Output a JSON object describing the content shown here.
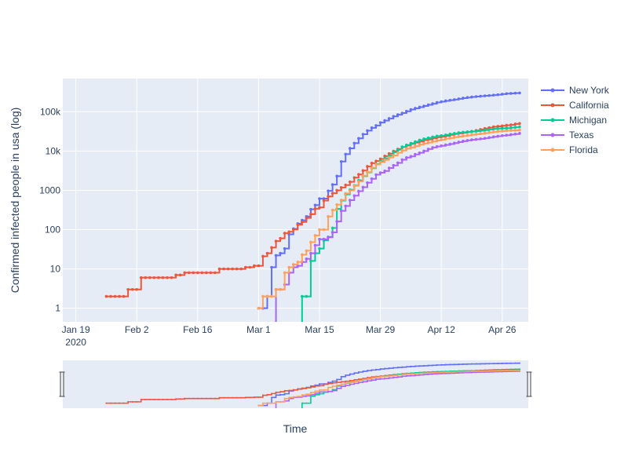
{
  "chart_data": {
    "type": "line",
    "ylabel": "Confirmed infected people in usa (log)",
    "xlabel": "Time",
    "y_scale": "log",
    "ylim": [
      0.45,
      700000
    ],
    "xlim": [
      "2020-01-16",
      "2020-05-02"
    ],
    "grid": true,
    "legend_position": "top-right",
    "range_slider": true,
    "x_tick_labels": [
      {
        "date": "2020-01-19",
        "line1": "Jan 19",
        "line2": "2020"
      },
      {
        "date": "2020-02-02",
        "line1": "Feb 2"
      },
      {
        "date": "2020-02-16",
        "line1": "Feb 16"
      },
      {
        "date": "2020-03-01",
        "line1": "Mar 1"
      },
      {
        "date": "2020-03-15",
        "line1": "Mar 15"
      },
      {
        "date": "2020-03-29",
        "line1": "Mar 29"
      },
      {
        "date": "2020-04-12",
        "line1": "Apr 12"
      },
      {
        "date": "2020-04-26",
        "line1": "Apr 26"
      }
    ],
    "y_tick_labels": [
      {
        "value": 1,
        "label": "1"
      },
      {
        "value": 10,
        "label": "10"
      },
      {
        "value": 100,
        "label": "100"
      },
      {
        "value": 1000,
        "label": "1000"
      },
      {
        "value": 10000,
        "label": "10k"
      },
      {
        "value": 100000,
        "label": "100k"
      }
    ],
    "series": [
      {
        "name": "New York",
        "color": "#636efa",
        "x": [
          "2020-03-01",
          "2020-03-02",
          "2020-03-03",
          "2020-03-04",
          "2020-03-05",
          "2020-03-06",
          "2020-03-07",
          "2020-03-08",
          "2020-03-09",
          "2020-03-10",
          "2020-03-11",
          "2020-03-12",
          "2020-03-13",
          "2020-03-14",
          "2020-03-15",
          "2020-03-16",
          "2020-03-17",
          "2020-03-18",
          "2020-03-19",
          "2020-03-20",
          "2020-03-21",
          "2020-03-22",
          "2020-03-23",
          "2020-03-24",
          "2020-03-25",
          "2020-03-26",
          "2020-03-27",
          "2020-03-28",
          "2020-03-29",
          "2020-03-30",
          "2020-03-31",
          "2020-04-01",
          "2020-04-02",
          "2020-04-03",
          "2020-04-04",
          "2020-04-05",
          "2020-04-06",
          "2020-04-07",
          "2020-04-08",
          "2020-04-09",
          "2020-04-10",
          "2020-04-11",
          "2020-04-12",
          "2020-04-13",
          "2020-04-14",
          "2020-04-15",
          "2020-04-16",
          "2020-04-17",
          "2020-04-18",
          "2020-04-19",
          "2020-04-20",
          "2020-04-21",
          "2020-04-22",
          "2020-04-23",
          "2020-04-24",
          "2020-04-25",
          "2020-04-26",
          "2020-04-27",
          "2020-04-28",
          "2020-04-29",
          "2020-04-30"
        ],
        "y": [
          1,
          1,
          2,
          11,
          22,
          25,
          33,
          76,
          105,
          142,
          173,
          216,
          328,
          421,
          613,
          615,
          967,
          1400,
          2300,
          5400,
          8300,
          11700,
          15800,
          21000,
          26700,
          33000,
          38900,
          44600,
          53000,
          59500,
          67200,
          76000,
          84000,
          92400,
          102900,
          113700,
          122000,
          131000,
          140000,
          150000,
          160000,
          172000,
          180000,
          189000,
          196000,
          203000,
          213000,
          222000,
          230000,
          237000,
          243000,
          248000,
          254000,
          259000,
          265000,
          271000,
          280000,
          288000,
          292000,
          297000,
          300000
        ]
      },
      {
        "name": "California",
        "color": "#ef553b",
        "x": [
          "2020-01-26",
          "2020-01-27",
          "2020-01-28",
          "2020-01-29",
          "2020-01-30",
          "2020-01-31",
          "2020-02-01",
          "2020-02-02",
          "2020-02-03",
          "2020-02-04",
          "2020-02-05",
          "2020-02-06",
          "2020-02-07",
          "2020-02-08",
          "2020-02-09",
          "2020-02-10",
          "2020-02-11",
          "2020-02-12",
          "2020-02-13",
          "2020-02-14",
          "2020-02-15",
          "2020-02-16",
          "2020-02-17",
          "2020-02-18",
          "2020-02-19",
          "2020-02-20",
          "2020-02-21",
          "2020-02-22",
          "2020-02-23",
          "2020-02-24",
          "2020-02-25",
          "2020-02-26",
          "2020-02-27",
          "2020-02-28",
          "2020-02-29",
          "2020-03-01",
          "2020-03-02",
          "2020-03-03",
          "2020-03-04",
          "2020-03-05",
          "2020-03-06",
          "2020-03-07",
          "2020-03-08",
          "2020-03-09",
          "2020-03-10",
          "2020-03-11",
          "2020-03-12",
          "2020-03-13",
          "2020-03-14",
          "2020-03-15",
          "2020-03-16",
          "2020-03-17",
          "2020-03-18",
          "2020-03-19",
          "2020-03-20",
          "2020-03-21",
          "2020-03-22",
          "2020-03-23",
          "2020-03-24",
          "2020-03-25",
          "2020-03-26",
          "2020-03-27",
          "2020-03-28",
          "2020-03-29",
          "2020-03-30",
          "2020-03-31",
          "2020-04-01",
          "2020-04-02",
          "2020-04-03",
          "2020-04-04",
          "2020-04-05",
          "2020-04-06",
          "2020-04-07",
          "2020-04-08",
          "2020-04-09",
          "2020-04-10",
          "2020-04-11",
          "2020-04-12",
          "2020-04-13",
          "2020-04-14",
          "2020-04-15",
          "2020-04-16",
          "2020-04-17",
          "2020-04-18",
          "2020-04-19",
          "2020-04-20",
          "2020-04-21",
          "2020-04-22",
          "2020-04-23",
          "2020-04-24",
          "2020-04-25",
          "2020-04-26",
          "2020-04-27",
          "2020-04-28",
          "2020-04-29",
          "2020-04-30"
        ],
        "y": [
          2,
          2,
          2,
          2,
          2,
          3,
          3,
          3,
          6,
          6,
          6,
          6,
          6,
          6,
          6,
          6,
          7,
          7,
          8,
          8,
          8,
          8,
          8,
          8,
          8,
          8,
          10,
          10,
          10,
          10,
          10,
          10,
          11,
          11,
          12,
          12,
          21,
          25,
          35,
          51,
          60,
          81,
          88,
          101,
          133,
          157,
          198,
          247,
          340,
          366,
          550,
          698,
          843,
          1000,
          1177,
          1364,
          1642,
          2100,
          2535,
          3183,
          4060,
          4914,
          5565,
          6284,
          7421,
          8582,
          9907,
          11190,
          12569,
          13796,
          15203,
          16361,
          17351,
          18897,
          19732,
          21081,
          22348,
          23250,
          24424,
          25758,
          27134,
          28141,
          29183,
          30356,
          31595,
          33286,
          35396,
          37360,
          39254,
          41355,
          42368,
          43725,
          45215,
          46436,
          48744,
          50130
        ]
      },
      {
        "name": "Michigan",
        "color": "#00cc96",
        "x": [
          "2020-03-10",
          "2020-03-11",
          "2020-03-12",
          "2020-03-13",
          "2020-03-14",
          "2020-03-15",
          "2020-03-16",
          "2020-03-17",
          "2020-03-18",
          "2020-03-19",
          "2020-03-20",
          "2020-03-21",
          "2020-03-22",
          "2020-03-23",
          "2020-03-24",
          "2020-03-25",
          "2020-03-26",
          "2020-03-27",
          "2020-03-28",
          "2020-03-29",
          "2020-03-30",
          "2020-03-31",
          "2020-04-01",
          "2020-04-02",
          "2020-04-03",
          "2020-04-04",
          "2020-04-05",
          "2020-04-06",
          "2020-04-07",
          "2020-04-08",
          "2020-04-09",
          "2020-04-10",
          "2020-04-11",
          "2020-04-12",
          "2020-04-13",
          "2020-04-14",
          "2020-04-15",
          "2020-04-16",
          "2020-04-17",
          "2020-04-18",
          "2020-04-19",
          "2020-04-20",
          "2020-04-21",
          "2020-04-22",
          "2020-04-23",
          "2020-04-24",
          "2020-04-25",
          "2020-04-26",
          "2020-04-27",
          "2020-04-28",
          "2020-04-29",
          "2020-04-30"
        ],
        "y": [
          0.3,
          2,
          2,
          16,
          25,
          33,
          53,
          65,
          110,
          336,
          549,
          787,
          1035,
          1328,
          1791,
          2294,
          2856,
          3657,
          4650,
          5486,
          6498,
          7615,
          9334,
          10791,
          12744,
          14225,
          15718,
          17221,
          18970,
          20346,
          21504,
          22783,
          23993,
          24638,
          25635,
          27001,
          28059,
          29263,
          30023,
          30791,
          31424,
          32000,
          32967,
          33966,
          35291,
          36641,
          37203,
          37778,
          38210,
          39262,
          40399,
          41379
        ]
      },
      {
        "name": "Texas",
        "color": "#ab63fa",
        "x": [
          "2020-03-04",
          "2020-03-05",
          "2020-03-06",
          "2020-03-07",
          "2020-03-08",
          "2020-03-09",
          "2020-03-10",
          "2020-03-11",
          "2020-03-12",
          "2020-03-13",
          "2020-03-14",
          "2020-03-15",
          "2020-03-16",
          "2020-03-17",
          "2020-03-18",
          "2020-03-19",
          "2020-03-20",
          "2020-03-21",
          "2020-03-22",
          "2020-03-23",
          "2020-03-24",
          "2020-03-25",
          "2020-03-26",
          "2020-03-27",
          "2020-03-28",
          "2020-03-29",
          "2020-03-30",
          "2020-03-31",
          "2020-04-01",
          "2020-04-02",
          "2020-04-03",
          "2020-04-04",
          "2020-04-05",
          "2020-04-06",
          "2020-04-07",
          "2020-04-08",
          "2020-04-09",
          "2020-04-10",
          "2020-04-11",
          "2020-04-12",
          "2020-04-13",
          "2020-04-14",
          "2020-04-15",
          "2020-04-16",
          "2020-04-17",
          "2020-04-18",
          "2020-04-19",
          "2020-04-20",
          "2020-04-21",
          "2020-04-22",
          "2020-04-23",
          "2020-04-24",
          "2020-04-25",
          "2020-04-26",
          "2020-04-27",
          "2020-04-28",
          "2020-04-29",
          "2020-04-30"
        ],
        "y": [
          0.3,
          3,
          3,
          4,
          8,
          11,
          12,
          15,
          18,
          25,
          40,
          57,
          57,
          64,
          85,
          161,
          300,
          400,
          560,
          730,
          950,
          1200,
          1560,
          1960,
          2500,
          2800,
          3100,
          3700,
          4300,
          5000,
          6000,
          6800,
          7300,
          8200,
          9000,
          10000,
          11200,
          12300,
          13000,
          13600,
          14300,
          15000,
          15900,
          16900,
          17800,
          18600,
          19300,
          19800,
          20400,
          21100,
          22000,
          23000,
          23800,
          24600,
          25300,
          26200,
          27000,
          28200
        ]
      },
      {
        "name": "Florida",
        "color": "#ffa15a",
        "x": [
          "2020-03-01",
          "2020-03-02",
          "2020-03-03",
          "2020-03-04",
          "2020-03-05",
          "2020-03-06",
          "2020-03-07",
          "2020-03-08",
          "2020-03-09",
          "2020-03-10",
          "2020-03-11",
          "2020-03-12",
          "2020-03-13",
          "2020-03-14",
          "2020-03-15",
          "2020-03-16",
          "2020-03-17",
          "2020-03-18",
          "2020-03-19",
          "2020-03-20",
          "2020-03-21",
          "2020-03-22",
          "2020-03-23",
          "2020-03-24",
          "2020-03-25",
          "2020-03-26",
          "2020-03-27",
          "2020-03-28",
          "2020-03-29",
          "2020-03-30",
          "2020-03-31",
          "2020-04-01",
          "2020-04-02",
          "2020-04-03",
          "2020-04-04",
          "2020-04-05",
          "2020-04-06",
          "2020-04-07",
          "2020-04-08",
          "2020-04-09",
          "2020-04-10",
          "2020-04-11",
          "2020-04-12",
          "2020-04-13",
          "2020-04-14",
          "2020-04-15",
          "2020-04-16",
          "2020-04-17",
          "2020-04-18",
          "2020-04-19",
          "2020-04-20",
          "2020-04-21",
          "2020-04-22",
          "2020-04-23",
          "2020-04-24",
          "2020-04-25",
          "2020-04-26",
          "2020-04-27",
          "2020-04-28",
          "2020-04-29",
          "2020-04-30"
        ],
        "y": [
          1,
          2,
          2,
          2,
          3,
          3,
          8,
          11,
          13,
          15,
          23,
          29,
          48,
          71,
          100,
          100,
          216,
          314,
          432,
          563,
          830,
          1000,
          1300,
          1680,
          2360,
          2900,
          3760,
          4540,
          5200,
          5950,
          6850,
          7700,
          9000,
          10300,
          11500,
          12300,
          13300,
          14500,
          15500,
          16400,
          17500,
          18500,
          19400,
          20600,
          21400,
          22500,
          23300,
          24100,
          25000,
          26000,
          26700,
          27500,
          28500,
          29600,
          30600,
          31500,
          32100,
          32800,
          33400,
          33700,
          34500
        ]
      }
    ]
  }
}
